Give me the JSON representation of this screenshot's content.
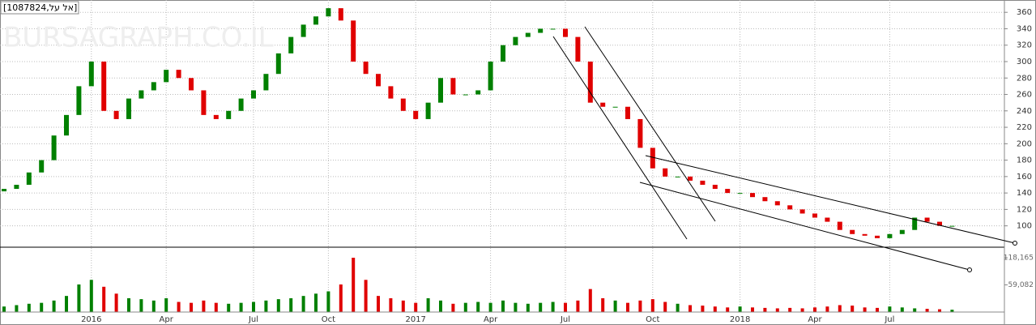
{
  "chart_data": {
    "type": "candlestick",
    "title": "[1087824,אל על]",
    "watermark": "BURSAGRAPH.CO.IL",
    "categories": [
      null,
      null,
      null,
      null,
      null,
      null,
      null,
      "2016",
      null,
      null,
      null,
      null,
      null,
      "Apr",
      null,
      null,
      null,
      null,
      null,
      null,
      "Jul",
      null,
      null,
      null,
      null,
      null,
      "Oct",
      null,
      null,
      null,
      null,
      null,
      null,
      "2017",
      null,
      null,
      null,
      null,
      null,
      "Apr",
      null,
      null,
      null,
      null,
      null,
      "Jul",
      null,
      null,
      null,
      null,
      null,
      null,
      "Oct",
      null,
      null,
      null,
      null,
      null,
      null,
      "2018",
      null,
      null,
      null,
      null,
      null,
      "Apr",
      null,
      null,
      null,
      null,
      null,
      "Jul",
      null,
      null,
      null,
      null,
      null
    ],
    "open": [
      142,
      145,
      150,
      165,
      180,
      210,
      235,
      270,
      300,
      240,
      230,
      255,
      265,
      275,
      290,
      280,
      265,
      235,
      230,
      240,
      255,
      265,
      285,
      310,
      330,
      345,
      355,
      365,
      350,
      300,
      285,
      270,
      255,
      240,
      230,
      250,
      280,
      260,
      260,
      265,
      300,
      320,
      330,
      335,
      340,
      340,
      330,
      300,
      250,
      245,
      245,
      230,
      195,
      170,
      160,
      160,
      155,
      150,
      145,
      140,
      140,
      135,
      130,
      125,
      120,
      115,
      110,
      105,
      95,
      90,
      88,
      85,
      90,
      95,
      110,
      105,
      100
    ],
    "close": [
      145,
      150,
      165,
      180,
      210,
      235,
      270,
      300,
      240,
      230,
      255,
      265,
      275,
      290,
      280,
      265,
      235,
      230,
      240,
      255,
      265,
      285,
      310,
      330,
      345,
      355,
      365,
      350,
      300,
      285,
      270,
      255,
      240,
      230,
      250,
      280,
      260,
      260,
      265,
      300,
      320,
      330,
      335,
      340,
      340,
      330,
      300,
      250,
      245,
      245,
      230,
      195,
      170,
      160,
      160,
      155,
      150,
      145,
      140,
      140,
      135,
      130,
      125,
      120,
      115,
      110,
      105,
      95,
      90,
      88,
      85,
      90,
      95,
      110,
      105,
      100,
      100
    ],
    "volume": [
      12000,
      15000,
      18000,
      20000,
      25000,
      35000,
      60000,
      70000,
      55000,
      40000,
      30000,
      28000,
      25000,
      30000,
      22000,
      20000,
      25000,
      20000,
      18000,
      20000,
      22000,
      25000,
      28000,
      30000,
      35000,
      40000,
      45000,
      60000,
      118165,
      70000,
      35000,
      30000,
      25000,
      20000,
      30000,
      25000,
      18000,
      20000,
      22000,
      20000,
      25000,
      20000,
      18000,
      20000,
      22000,
      20000,
      25000,
      50000,
      30000,
      25000,
      20000,
      25000,
      28000,
      22000,
      18000,
      15000,
      14000,
      12000,
      10000,
      12000,
      10000,
      9000,
      8000,
      9000,
      8000,
      10000,
      12000,
      15000,
      14000,
      10000,
      9000,
      12000,
      10000,
      8000,
      7000,
      6000,
      5000
    ],
    "up_color": "#008000",
    "down_color": "#e00000",
    "ylim": [
      74,
      375
    ],
    "yticks": [
      100,
      120,
      140,
      160,
      180,
      200,
      220,
      240,
      260,
      280,
      300,
      320,
      340,
      360
    ],
    "volume_lim": [
      0,
      137560
    ],
    "volume_ticks": [
      {
        "value": 118165,
        "label": "118,165"
      },
      {
        "value": 59082,
        "label": "59,082"
      }
    ],
    "grid": true
  }
}
